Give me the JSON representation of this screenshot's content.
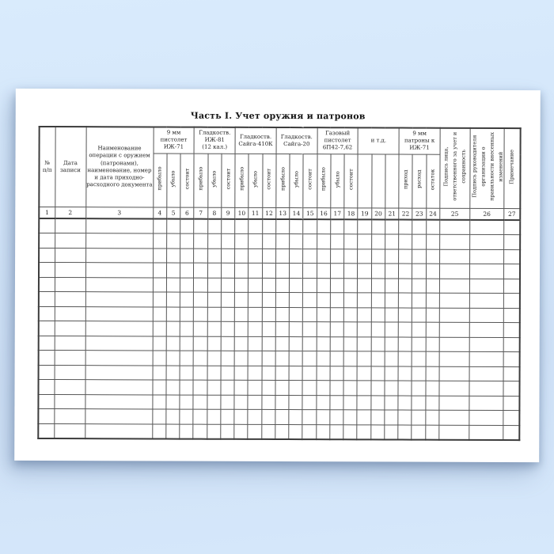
{
  "page": {
    "title": "Часть I. Учет оружия и патронов"
  },
  "table": {
    "static_cols": [
      {
        "label": "№\nп/п",
        "col_no": "1"
      },
      {
        "label": "Дата\nзаписи",
        "col_no": "2"
      },
      {
        "label": "Наименование\nоперации с оружием\n(патронами),\nнаименование, номер\nи дата приходно-\nрасходного документа",
        "col_no": "3"
      }
    ],
    "groups": [
      {
        "label": "9 мм\nпистолет\nИЖ-71",
        "subs": [
          "прибыло",
          "убыло",
          "состоит"
        ]
      },
      {
        "label": "Гладкоств.\nИЖ-81\n(12 кал.)",
        "subs": [
          "прибыло",
          "убыло",
          "состоит"
        ]
      },
      {
        "label": "Гладкоств.\nСайга-410К",
        "subs": [
          "прибыло",
          "убыло",
          "состоит"
        ]
      },
      {
        "label": "Гладкоств.\nСайга-20",
        "subs": [
          "прибыло",
          "убыло",
          "состоит"
        ]
      },
      {
        "label": "Газовый\nпистолет\n6П42-7,62",
        "subs": [
          "прибыло",
          "убыло",
          "состоит"
        ]
      },
      {
        "label": "и т.д.",
        "subs": [
          "",
          "",
          ""
        ]
      },
      {
        "label": "9 мм\nпатроны к\nИЖ-71",
        "subs": [
          "приход",
          "расход",
          "остаток"
        ]
      }
    ],
    "tail_cols": [
      {
        "label": "Подпись лица,\nответственного за учет и\nсохранность",
        "col_no": "25"
      },
      {
        "label": "Подпись руководителя\nорганизации о\nправильности внесенных\nизменений",
        "col_no": "26"
      },
      {
        "label": "Примечание",
        "col_no": "27"
      }
    ],
    "column_numbers": [
      "1",
      "2",
      "3",
      "4",
      "5",
      "6",
      "7",
      "8",
      "9",
      "10",
      "11",
      "12",
      "13",
      "14",
      "15",
      "16",
      "17",
      "18",
      "19",
      "20",
      "21",
      "22",
      "23",
      "24",
      "25",
      "26",
      "27"
    ],
    "blank_row_count": 15
  }
}
